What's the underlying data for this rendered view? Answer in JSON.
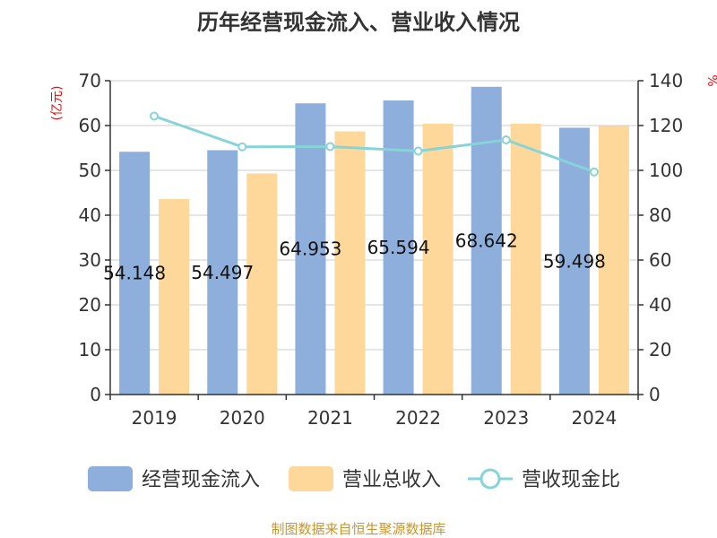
{
  "chart_data": {
    "type": "bar",
    "title": "历年经营现金流入、营业收入情况",
    "left_unit": "(亿元)",
    "right_unit": "%",
    "categories": [
      "2019",
      "2020",
      "2021",
      "2022",
      "2023",
      "2024"
    ],
    "ylim": [
      0,
      70
    ],
    "yticks": [
      0,
      10,
      20,
      30,
      40,
      50,
      60,
      70
    ],
    "y2lim": [
      0,
      140
    ],
    "y2ticks": [
      0,
      20,
      40,
      60,
      80,
      100,
      120,
      140
    ],
    "grid": true,
    "legend_position": "bottom",
    "series": [
      {
        "name": "经营现金流入",
        "type": "bar",
        "axis": "left",
        "color": "#8eaedb",
        "values": [
          54.148,
          54.497,
          64.953,
          65.594,
          68.642,
          59.498
        ],
        "labels": [
          "54.148",
          "54.497",
          "64.953",
          "65.594",
          "68.642",
          "59.498"
        ]
      },
      {
        "name": "营业总收入",
        "type": "bar",
        "axis": "left",
        "color": "#fdd89a",
        "values": [
          43.6,
          49.3,
          58.7,
          60.4,
          60.4,
          59.9
        ]
      },
      {
        "name": "营收现金比",
        "type": "line",
        "axis": "right",
        "color": "#86d4d8",
        "values": [
          124.2,
          110.5,
          110.6,
          108.6,
          113.6,
          99.3
        ]
      }
    ]
  },
  "source": "制图数据来自恒生聚源数据库"
}
